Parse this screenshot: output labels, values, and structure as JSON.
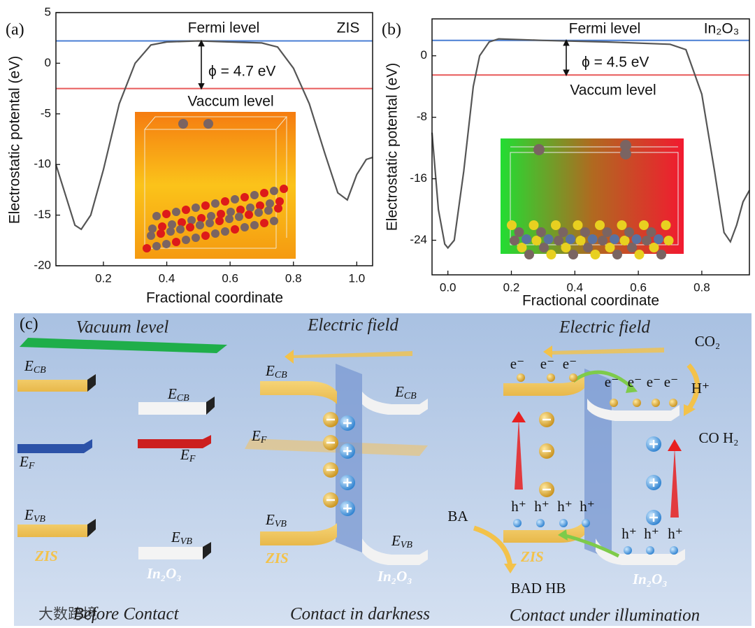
{
  "chart_data": [
    {
      "type": "line",
      "panel": "(a)",
      "xlabel": "Fractional coordinate",
      "ylabel": "Electrostatic potental (eV)",
      "xlim": [
        0.05,
        1.05
      ],
      "xticks": [
        0.2,
        0.4,
        0.6,
        0.8,
        {
          "value": 1,
          "label": "1.0"
        }
      ],
      "ylim": [
        -20,
        5
      ],
      "yticks": [
        -20,
        -15,
        -10,
        -5,
        0,
        5
      ],
      "x": [
        0.05,
        0.08,
        0.11,
        0.13,
        0.16,
        0.2,
        0.25,
        0.3,
        0.35,
        0.4,
        0.5,
        0.6,
        0.7,
        0.75,
        0.8,
        0.85,
        0.9,
        0.94,
        0.97,
        1.0,
        1.03,
        1.05
      ],
      "series": [
        {
          "color": "#555555",
          "values": [
            -10,
            -13,
            -16,
            -16.4,
            -15,
            -10.5,
            -4,
            0,
            1.8,
            2.1,
            2.2,
            2.1,
            2.0,
            1.6,
            -0.5,
            -4,
            -9,
            -12.8,
            -13.5,
            -11,
            -9.5,
            -9.3
          ]
        }
      ],
      "reference_lines": [
        {
          "label": "Fermi level",
          "value": 2.2,
          "color": "#4a7fd4"
        },
        {
          "label": "Vaccum level",
          "value": -2.5,
          "color": "#e85a5a"
        }
      ],
      "annotations": [
        "ZIS",
        "ϕ = 4.7 eV"
      ]
    },
    {
      "type": "line",
      "panel": "(b)",
      "xlabel": "Fractional coordinate",
      "ylabel": "Electrostatic potental (eV)",
      "xlim": [
        -0.05,
        0.95
      ],
      "xticks": [
        {
          "value": 0,
          "label": "0.0"
        },
        0.2,
        0.4,
        0.6,
        0.8
      ],
      "ylim": [
        -28.5,
        4.8
      ],
      "yticks": [
        -24,
        -16,
        -8,
        0
      ],
      "x": [
        -0.05,
        -0.03,
        -0.01,
        0.0,
        0.02,
        0.05,
        0.08,
        0.1,
        0.13,
        0.16,
        0.3,
        0.5,
        0.7,
        0.75,
        0.8,
        0.84,
        0.87,
        0.89,
        0.91,
        0.93,
        0.95
      ],
      "series": [
        {
          "color": "#555555",
          "values": [
            -10,
            -20,
            -24.5,
            -25,
            -24,
            -15,
            -4,
            0,
            1.8,
            2.2,
            2.0,
            1.8,
            1.5,
            0.8,
            -5,
            -15,
            -23,
            -24.2,
            -22,
            -19,
            -17.5
          ]
        }
      ],
      "reference_lines": [
        {
          "label": "Fermi level",
          "value": 2.0,
          "color": "#4a7fd4"
        },
        {
          "label": "Vaccum level",
          "value": -2.5,
          "color": "#e85a5a"
        }
      ],
      "annotations": [
        "In₂O₃",
        "ϕ = 4.5 eV"
      ]
    }
  ],
  "diagram": {
    "label": "(c)",
    "watermark": "大数跨境",
    "panels": [
      {
        "caption": "Before Contact",
        "header": "Vacuum level",
        "left": {
          "ecb": [
            "E",
            "CB"
          ],
          "ef": [
            "E",
            "F"
          ],
          "evb": [
            "E",
            "VB"
          ],
          "material": "ZIS"
        },
        "right": {
          "ecb": [
            "E",
            "CB"
          ],
          "ef": [
            "E",
            "F"
          ],
          "evb": [
            "E",
            "VB"
          ],
          "material": "In₂O₃"
        }
      },
      {
        "caption": "Contact in darkness",
        "header": "Electric field",
        "fermi": [
          "E",
          "F"
        ],
        "left": {
          "ecb": [
            "E",
            "CB"
          ],
          "evb": [
            "E",
            "VB"
          ],
          "material": "ZIS"
        },
        "right": {
          "ecb": [
            "E",
            "CB"
          ],
          "evb": [
            "E",
            "VB"
          ],
          "material": "In₂O₃"
        }
      },
      {
        "caption": "Contact under illumination",
        "header": "Electric field",
        "left": {
          "electrons": [
            "e⁻",
            "e⁻",
            "e⁻"
          ],
          "holes": [
            "h⁺",
            "h⁺",
            "h⁺",
            "h⁺"
          ],
          "material": "ZIS"
        },
        "right": {
          "electrons": [
            "e⁻",
            "e⁻",
            "e⁻",
            "e⁻"
          ],
          "holes": [
            "h⁺",
            "h⁺",
            "h⁺"
          ],
          "material": "In₂O₃"
        },
        "reactants": [
          "CO₂",
          "H⁺",
          "BA"
        ],
        "products": [
          "CO H₂",
          "BAD HB"
        ]
      }
    ]
  }
}
